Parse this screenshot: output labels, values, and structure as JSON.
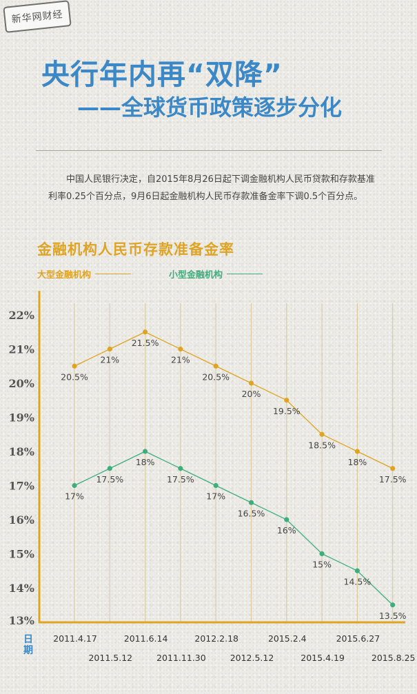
{
  "stamp": "新华网财经",
  "title_line1": "央行年内再“双降”",
  "title_line2": "——全球货币政策逐步分化",
  "intro": "中国人民银行决定，自2015年8月26日起下调金融机构人民币贷款和存款基准利率0.25个百分点，9月6日起金融机构人民币存款准备金率下调0.5个百分点。",
  "chart_data": {
    "type": "line",
    "title": "金融机构人民币存款准备金率",
    "xlabel": "日期",
    "ylabel": "",
    "categories": [
      "2011.4.17",
      "2011.5.12",
      "2011.6.14",
      "2011.11.30",
      "2012.2.18",
      "2012.5.12",
      "2015.2.4",
      "2015.4.19",
      "2015.6.27",
      "2015.8.25"
    ],
    "series": [
      {
        "name": "大型金融机构",
        "color": "#dfa423",
        "values": [
          20.5,
          21,
          21.5,
          21,
          20.5,
          20,
          19.5,
          18.5,
          18,
          17.5
        ],
        "labels": [
          "20.5%",
          "21%",
          "21.5%",
          "21%",
          "20.5%",
          "20%",
          "19.5%",
          "18.5%",
          "18%",
          "17.5%"
        ]
      },
      {
        "name": "小型金融机构",
        "color": "#3fae7d",
        "values": [
          17,
          17.5,
          18,
          17.5,
          17,
          16.5,
          16,
          15,
          14.5,
          13.5
        ],
        "labels": [
          "17%",
          "17.5%",
          "18%",
          "17.5%",
          "17%",
          "16.5%",
          "16%",
          "15%",
          "14.5%",
          "13.5%"
        ]
      }
    ],
    "y_ticks": [
      "22%",
      "21%",
      "20%",
      "19%",
      "18%",
      "17%",
      "16%",
      "15%",
      "14%",
      "13%"
    ],
    "grid": "vertical",
    "legend": "top-left"
  }
}
